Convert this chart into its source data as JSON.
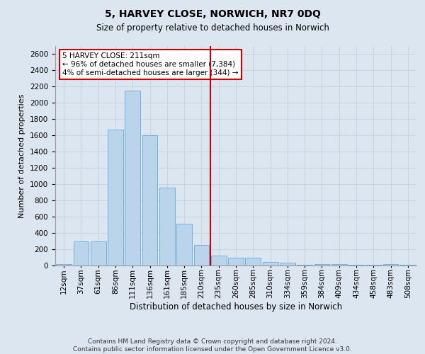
{
  "title": "5, HARVEY CLOSE, NORWICH, NR7 0DQ",
  "subtitle": "Size of property relative to detached houses in Norwich",
  "xlabel": "Distribution of detached houses by size in Norwich",
  "ylabel": "Number of detached properties",
  "footer_line1": "Contains HM Land Registry data © Crown copyright and database right 2024.",
  "footer_line2": "Contains public sector information licensed under the Open Government Licence v3.0.",
  "annotation_line1": "5 HARVEY CLOSE: 211sqm",
  "annotation_line2": "← 96% of detached houses are smaller (7,384)",
  "annotation_line3": "4% of semi-detached houses are larger (344) →",
  "bar_color": "#bad4ec",
  "bar_edge_color": "#6aaad4",
  "grid_color": "#c8d4e4",
  "vline_color": "#cc0000",
  "background_color": "#dce6f0",
  "categories": [
    "12sqm",
    "37sqm",
    "61sqm",
    "86sqm",
    "111sqm",
    "136sqm",
    "161sqm",
    "185sqm",
    "210sqm",
    "235sqm",
    "260sqm",
    "285sqm",
    "310sqm",
    "334sqm",
    "359sqm",
    "384sqm",
    "409sqm",
    "434sqm",
    "458sqm",
    "483sqm",
    "508sqm"
  ],
  "values": [
    20,
    300,
    300,
    1670,
    2150,
    1600,
    960,
    510,
    250,
    120,
    100,
    100,
    45,
    35,
    10,
    20,
    20,
    5,
    5,
    20,
    5
  ],
  "ylim": [
    0,
    2700
  ],
  "yticks": [
    0,
    200,
    400,
    600,
    800,
    1000,
    1200,
    1400,
    1600,
    1800,
    2000,
    2200,
    2400,
    2600
  ],
  "vline_x_index": 8.5,
  "title_fontsize": 10,
  "subtitle_fontsize": 8.5,
  "xlabel_fontsize": 8.5,
  "ylabel_fontsize": 8,
  "tick_fontsize": 7.5,
  "annotation_fontsize": 7.5,
  "footer_fontsize": 6.5
}
